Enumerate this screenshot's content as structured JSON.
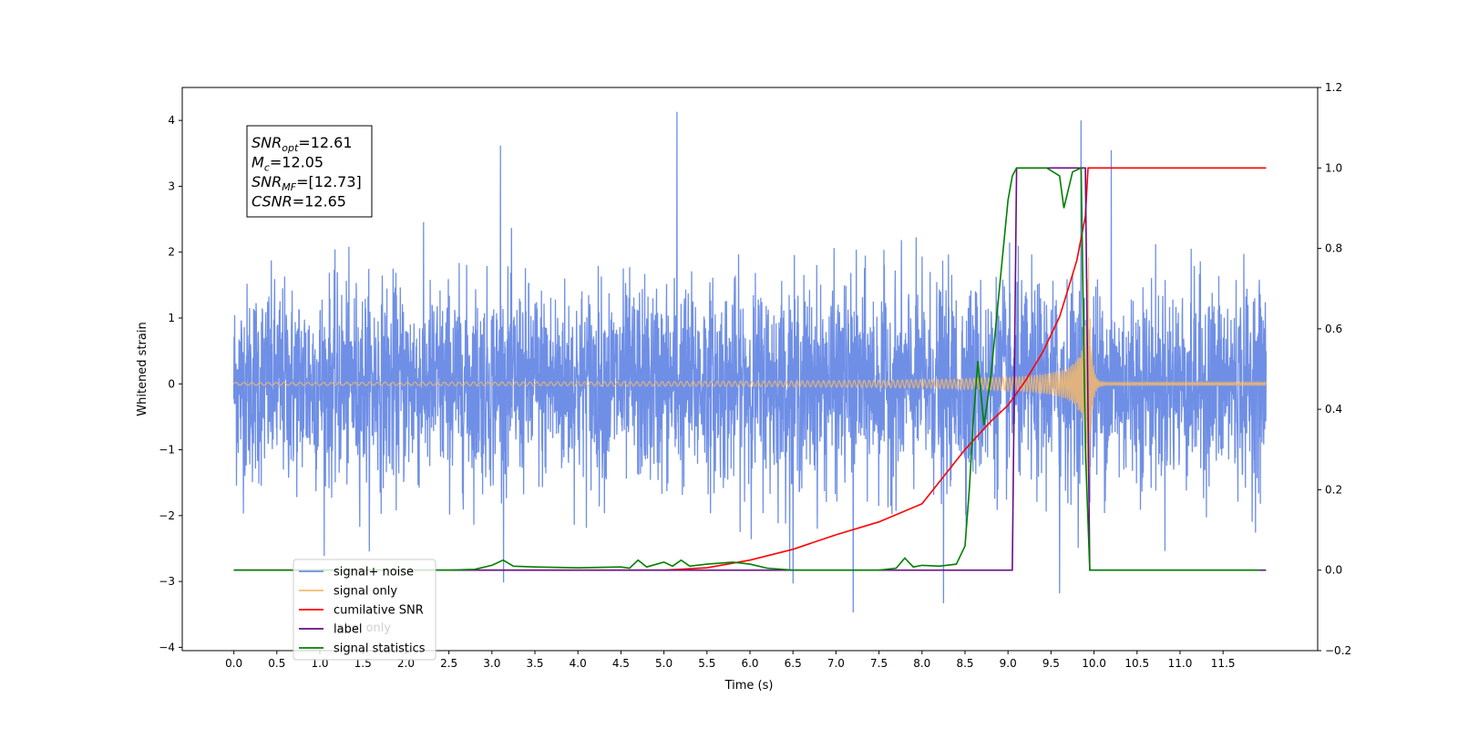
{
  "chart_data": {
    "type": "line",
    "xlabel": "Time (s)",
    "ylabel_left": "Whitened strain",
    "ylabel_right": "",
    "xlim": [
      -0.6,
      12.6
    ],
    "ylim_left": [
      -4.05,
      4.5
    ],
    "ylim_right": [
      -0.2,
      1.2
    ],
    "x_ticks": [
      0.0,
      0.5,
      1.0,
      1.5,
      2.0,
      2.5,
      3.0,
      3.5,
      4.0,
      4.5,
      5.0,
      5.5,
      6.0,
      6.5,
      7.0,
      7.5,
      8.0,
      8.5,
      9.0,
      9.5,
      10.0,
      10.5,
      11.0,
      11.5
    ],
    "x_tick_labels": [
      "0.0",
      "0.5",
      "1.0",
      "1.5",
      "2.0",
      "2.5",
      "3.0",
      "3.5",
      "4.0",
      "4.5",
      "5.0",
      "5.5",
      "6.0",
      "6.5",
      "7.0",
      "7.5",
      "8.0",
      "8.5",
      "9.0",
      "9.5",
      "10.0",
      "10.5",
      "11.0",
      "11.5"
    ],
    "y_ticks_left": [
      -4,
      -3,
      -2,
      -1,
      0,
      1,
      2,
      3,
      4
    ],
    "y_tick_labels_left": [
      "−4",
      "−3",
      "−2",
      "−1",
      "0",
      "1",
      "2",
      "3",
      "4"
    ],
    "y_ticks_right": [
      -0.2,
      0.0,
      0.2,
      0.4,
      0.6,
      0.8,
      1.0,
      1.2
    ],
    "y_tick_labels_right": [
      "−0.2",
      "0.0",
      "0.2",
      "0.4",
      "0.6",
      "0.8",
      "1.0",
      "1.2"
    ],
    "grid": false,
    "legend_position": "lower-left",
    "annotation": {
      "lines": [
        {
          "sym": "SNR",
          "sub": "opt",
          "val": "=12.61"
        },
        {
          "sym": "M",
          "sub": "c",
          "val": "=12.05"
        },
        {
          "sym": "SNR",
          "sub": "MF",
          "val": "=[12.73]"
        },
        {
          "sym": "CSNR",
          "sub": "",
          "val": "=12.65"
        }
      ]
    },
    "series": [
      {
        "name": "signal+ noise",
        "axis": "left",
        "color": "#6f8fe6",
        "kind": "noise",
        "x_range": [
          0.0,
          12.0
        ],
        "sigma": 0.75,
        "spikes": [
          [
            5.15,
            4.13
          ],
          [
            9.85,
            4.0
          ],
          [
            10.2,
            3.55
          ],
          [
            3.1,
            3.62
          ],
          [
            7.2,
            -3.47
          ],
          [
            9.6,
            -3.18
          ],
          [
            8.25,
            -3.33
          ],
          [
            6.5,
            -3.03
          ]
        ]
      },
      {
        "name": "signal only",
        "axis": "left",
        "color": "#f5b96b",
        "kind": "chirp",
        "x_range": [
          0.0,
          12.0
        ],
        "merger_time": 9.93,
        "peak_amplitude": 2.38
      },
      {
        "name": "cumilative SNR",
        "axis": "right",
        "color": "#ff0000",
        "kind": "line",
        "points": [
          [
            0.0,
            0.0
          ],
          [
            5.0,
            0.0
          ],
          [
            5.5,
            0.006
          ],
          [
            6.0,
            0.025
          ],
          [
            6.5,
            0.052
          ],
          [
            7.0,
            0.088
          ],
          [
            7.5,
            0.12
          ],
          [
            8.0,
            0.165
          ],
          [
            8.5,
            0.3
          ],
          [
            8.8,
            0.37
          ],
          [
            9.0,
            0.41
          ],
          [
            9.2,
            0.47
          ],
          [
            9.4,
            0.54
          ],
          [
            9.6,
            0.63
          ],
          [
            9.7,
            0.7
          ],
          [
            9.8,
            0.77
          ],
          [
            9.9,
            0.88
          ],
          [
            9.93,
            1.0
          ],
          [
            12.0,
            1.0
          ]
        ]
      },
      {
        "name": "label",
        "axis": "right",
        "color": "#6a0d83",
        "kind": "line",
        "points": [
          [
            0.0,
            0.0
          ],
          [
            9.05,
            0.0
          ],
          [
            9.1,
            1.0
          ],
          [
            9.9,
            1.0
          ],
          [
            9.95,
            0.0
          ],
          [
            12.0,
            0.0
          ]
        ]
      },
      {
        "name": "signal statistics",
        "axis": "right",
        "color": "#008000",
        "kind": "line",
        "points": [
          [
            0.0,
            0.0
          ],
          [
            2.5,
            0.0
          ],
          [
            2.8,
            0.002
          ],
          [
            3.0,
            0.012
          ],
          [
            3.13,
            0.025
          ],
          [
            3.25,
            0.01
          ],
          [
            3.5,
            0.008
          ],
          [
            4.0,
            0.006
          ],
          [
            4.5,
            0.008
          ],
          [
            4.6,
            0.005
          ],
          [
            4.7,
            0.025
          ],
          [
            4.8,
            0.008
          ],
          [
            5.0,
            0.02
          ],
          [
            5.1,
            0.01
          ],
          [
            5.2,
            0.025
          ],
          [
            5.3,
            0.01
          ],
          [
            5.5,
            0.015
          ],
          [
            5.8,
            0.02
          ],
          [
            6.0,
            0.015
          ],
          [
            6.2,
            0.005
          ],
          [
            6.5,
            0.0
          ],
          [
            7.5,
            0.0
          ],
          [
            7.7,
            0.005
          ],
          [
            7.8,
            0.03
          ],
          [
            7.9,
            0.008
          ],
          [
            8.0,
            0.012
          ],
          [
            8.2,
            0.01
          ],
          [
            8.4,
            0.015
          ],
          [
            8.5,
            0.06
          ],
          [
            8.55,
            0.2
          ],
          [
            8.6,
            0.38
          ],
          [
            8.65,
            0.52
          ],
          [
            8.72,
            0.36
          ],
          [
            8.8,
            0.48
          ],
          [
            9.0,
            0.92
          ],
          [
            9.05,
            0.98
          ],
          [
            9.1,
            1.0
          ],
          [
            9.45,
            1.0
          ],
          [
            9.6,
            0.98
          ],
          [
            9.65,
            0.9
          ],
          [
            9.75,
            0.99
          ],
          [
            9.85,
            1.0
          ],
          [
            9.9,
            0.3
          ],
          [
            9.95,
            0.0
          ],
          [
            11.93,
            0.0
          ]
        ]
      }
    ],
    "legend": [
      {
        "label": "signal+ noise",
        "color": "#6f8fe6"
      },
      {
        "label": "signal only",
        "color": "#f5b96b"
      },
      {
        "label": "cumilative SNR",
        "color": "#ff0000"
      },
      {
        "label": "label",
        "color": "#6a0d83"
      },
      {
        "label": "signal statistics",
        "color": "#008000"
      }
    ],
    "hidden_legend_label": "label only"
  }
}
